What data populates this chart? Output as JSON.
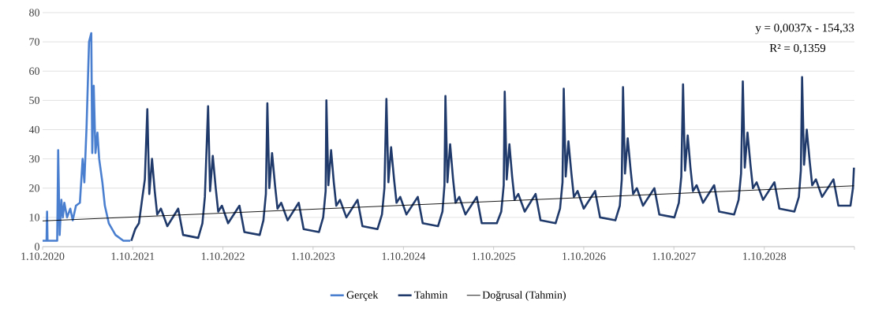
{
  "chart_data": {
    "type": "line",
    "xlim": [
      "2020-10-01",
      "2029-10-01"
    ],
    "xticks": [
      {
        "value": "2020-10-01",
        "label": "1.10.2020"
      },
      {
        "value": "2021-10-01",
        "label": "1.10.2021"
      },
      {
        "value": "2022-10-01",
        "label": "1.10.2022"
      },
      {
        "value": "2023-10-01",
        "label": "1.10.2023"
      },
      {
        "value": "2024-10-01",
        "label": "1.10.2024"
      },
      {
        "value": "2025-10-01",
        "label": "1.10.2025"
      },
      {
        "value": "2026-10-01",
        "label": "1.10.2026"
      },
      {
        "value": "2027-10-01",
        "label": "1.10.2027"
      },
      {
        "value": "2028-10-01",
        "label": "1.10.2028"
      },
      {
        "value": "2029-10-01",
        "label": null
      }
    ],
    "ylim": [
      0,
      80
    ],
    "yticks": [
      0,
      10,
      20,
      30,
      40,
      50,
      60,
      70,
      80
    ],
    "grid": "y",
    "legend": "bottom",
    "annotations": [
      "y = 0,0037x - 154,33",
      "R² = 0,1359"
    ],
    "series": [
      {
        "name": "Gerçek",
        "color": "#4a7fd0",
        "x": [
          "2020-10-01",
          "2020-10-17",
          "2020-10-19",
          "2020-10-21",
          "2020-10-30",
          "2020-11-29",
          "2020-12-03",
          "2020-12-09",
          "2020-12-16",
          "2020-12-22",
          "2020-12-28",
          "2021-01-08",
          "2021-01-21",
          "2021-01-31",
          "2021-02-13",
          "2021-03-01",
          "2021-03-12",
          "2021-03-19",
          "2021-03-28",
          "2021-04-07",
          "2021-04-16",
          "2021-04-20",
          "2021-04-26",
          "2021-05-03",
          "2021-05-11",
          "2021-05-18",
          "2021-05-31",
          "2021-06-10",
          "2021-06-26",
          "2021-07-23",
          "2021-08-24",
          "2021-09-21"
        ],
        "values": [
          2,
          2,
          12,
          2,
          2,
          2,
          33,
          4,
          16,
          10,
          15,
          10,
          13,
          9,
          14,
          15,
          30,
          22,
          41,
          70,
          73,
          32,
          55,
          32,
          39,
          30,
          22,
          14,
          8,
          4,
          2,
          2
        ]
      },
      {
        "name": "Tahmin",
        "color": "#1f3a6b",
        "x": [
          "2021-09-25",
          "2021-10-11",
          "2021-10-26",
          "2021-11-06",
          "2021-11-19",
          "2021-11-29",
          "2021-12-07",
          "2021-12-18",
          "2021-12-29",
          "2022-01-08",
          "2022-01-23",
          "2022-02-18",
          "2022-04-03",
          "2022-04-23",
          "2022-06-23",
          "2022-07-10",
          "2022-07-20",
          "2022-08-02",
          "2022-08-10",
          "2022-08-21",
          "2022-09-02",
          "2022-09-12",
          "2022-09-27",
          "2022-10-22",
          "2022-12-07",
          "2022-12-27",
          "2023-02-27",
          "2023-03-14",
          "2023-03-24",
          "2023-03-30",
          "2023-04-07",
          "2023-04-18",
          "2023-04-30",
          "2023-05-10",
          "2023-05-25",
          "2023-06-20",
          "2023-08-04",
          "2023-08-24",
          "2023-10-25",
          "2023-11-11",
          "2023-11-21",
          "2023-11-24",
          "2023-12-02",
          "2023-12-13",
          "2023-12-24",
          "2024-01-03",
          "2024-01-18",
          "2024-02-13",
          "2024-03-29",
          "2024-04-18",
          "2024-06-18",
          "2024-07-06",
          "2024-07-16",
          "2024-07-24",
          "2024-08-01",
          "2024-08-12",
          "2024-08-24",
          "2024-09-03",
          "2024-09-18",
          "2024-10-13",
          "2024-11-28",
          "2024-12-18",
          "2025-02-18",
          "2025-03-08",
          "2025-03-16",
          "2025-03-20",
          "2025-03-28",
          "2025-04-08",
          "2025-04-20",
          "2025-04-30",
          "2025-05-15",
          "2025-06-09",
          "2025-07-25",
          "2025-08-14",
          "2025-10-14",
          "2025-11-01",
          "2025-11-11",
          "2025-11-15",
          "2025-11-23",
          "2025-12-04",
          "2025-12-15",
          "2025-12-25",
          "2026-01-09",
          "2026-02-04",
          "2026-03-20",
          "2026-04-09",
          "2026-06-09",
          "2026-06-27",
          "2026-07-07",
          "2026-07-12",
          "2026-07-20",
          "2026-07-31",
          "2026-08-12",
          "2026-08-22",
          "2026-09-06",
          "2026-10-01",
          "2026-11-16",
          "2026-12-06",
          "2027-02-06",
          "2027-02-24",
          "2027-03-04",
          "2027-03-09",
          "2027-03-17",
          "2027-03-28",
          "2027-04-09",
          "2027-04-19",
          "2027-05-04",
          "2027-05-29",
          "2027-07-14",
          "2027-08-03",
          "2027-10-03",
          "2027-10-21",
          "2027-10-31",
          "2027-11-07",
          "2027-11-15",
          "2027-11-26",
          "2027-12-07",
          "2027-12-17",
          "2028-01-01",
          "2028-01-27",
          "2028-03-12",
          "2028-04-01",
          "2028-06-01",
          "2028-06-19",
          "2028-06-29",
          "2028-07-06",
          "2028-07-14",
          "2028-07-25",
          "2028-08-06",
          "2028-08-16",
          "2028-08-31",
          "2028-09-26",
          "2028-11-11",
          "2028-12-01",
          "2029-01-31",
          "2029-02-18",
          "2029-02-26",
          "2029-03-03",
          "2029-03-11",
          "2029-03-22",
          "2029-04-03",
          "2029-04-13",
          "2029-04-28",
          "2029-05-23",
          "2029-07-08",
          "2029-07-28",
          "2029-09-15",
          "2029-09-25",
          "2029-09-29"
        ],
        "values": [
          2,
          6,
          8,
          15,
          23,
          47,
          18,
          30,
          19,
          11,
          13,
          7,
          13,
          4,
          3,
          8,
          17,
          48,
          19,
          31,
          20,
          12,
          14,
          8,
          14,
          5,
          4,
          9,
          18,
          49,
          20,
          32,
          21,
          13,
          15,
          9,
          15,
          6,
          5,
          10,
          19,
          50,
          21,
          33,
          22,
          14,
          16,
          10,
          16,
          7,
          6,
          11,
          20,
          50.5,
          22,
          34,
          23,
          15,
          17,
          11,
          17,
          8,
          7,
          12,
          21,
          51.5,
          22,
          35,
          23,
          15,
          17,
          11,
          17,
          8,
          8,
          12,
          21,
          53,
          23,
          35,
          24,
          16,
          18,
          12,
          18,
          9,
          8,
          13,
          22,
          54,
          24,
          36,
          25,
          17,
          19,
          13,
          19,
          10,
          9,
          14,
          23,
          54.5,
          25,
          37,
          26,
          18,
          20,
          14,
          20,
          11,
          10,
          15,
          24,
          55.5,
          26,
          38,
          27,
          19,
          21,
          15,
          21,
          12,
          11,
          16,
          25,
          56.5,
          27,
          39,
          28,
          20,
          22,
          16,
          22,
          13,
          12,
          17,
          26,
          58,
          28,
          40,
          29,
          21,
          23,
          17,
          23,
          14,
          14,
          20,
          27
        ]
      },
      {
        "name": "Doğrusal (Tahmin)",
        "type": "line",
        "color": "#000000",
        "x": [
          "2020-10-01",
          "2029-09-29"
        ],
        "values": [
          8.8,
          20.8
        ]
      }
    ]
  }
}
